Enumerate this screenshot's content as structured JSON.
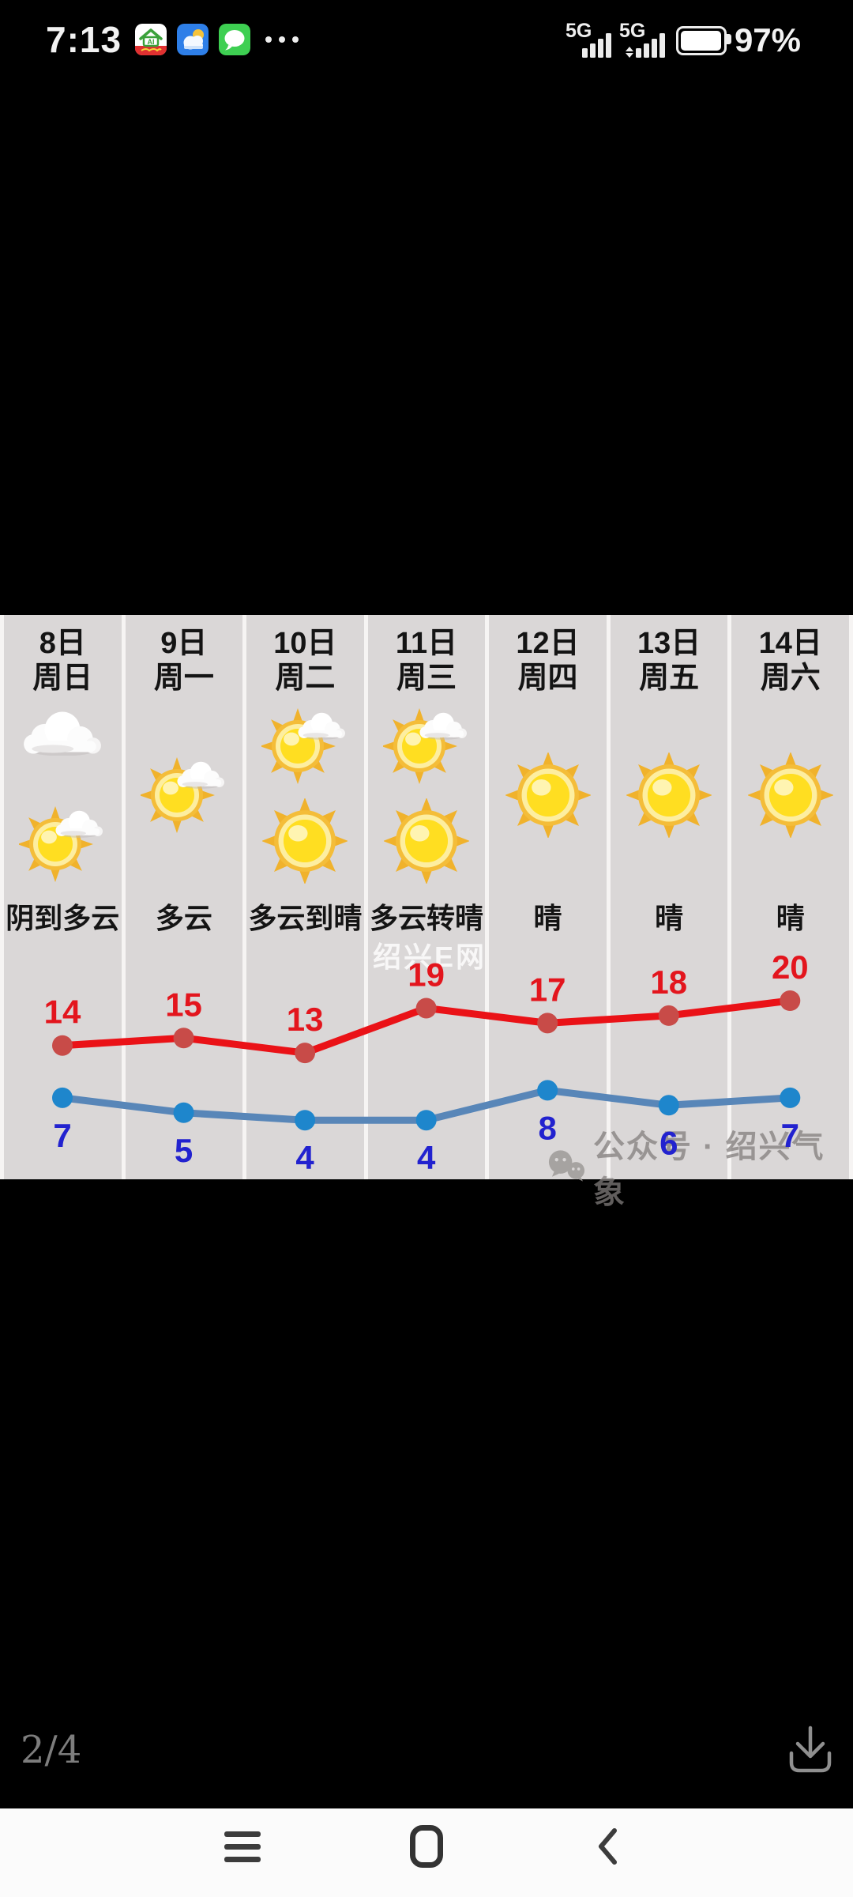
{
  "status_bar": {
    "time": "7:13",
    "notification_icons": [
      "home-app",
      "weather-app",
      "messages-app",
      "more"
    ],
    "signal1_label": "5G",
    "signal2_label": "5G",
    "battery_percent": "97%"
  },
  "forecast": {
    "watermark_center": "绍兴E网",
    "watermark_bottom": "公众号 · 绍兴气象",
    "days": [
      {
        "date": "8日",
        "weekday": "周日",
        "icons": [
          "cloud",
          "sun-cloud"
        ],
        "condition": "阴到多云",
        "high": 14,
        "low": 7
      },
      {
        "date": "9日",
        "weekday": "周一",
        "icons": [
          "sun-cloud"
        ],
        "condition": "多云",
        "high": 15,
        "low": 5
      },
      {
        "date": "10日",
        "weekday": "周二",
        "icons": [
          "sun-cloud",
          "sun"
        ],
        "condition": "多云到晴",
        "high": 13,
        "low": 4
      },
      {
        "date": "11日",
        "weekday": "周三",
        "icons": [
          "sun-cloud",
          "sun"
        ],
        "condition": "多云转晴",
        "high": 19,
        "low": 4
      },
      {
        "date": "12日",
        "weekday": "周四",
        "icons": [
          "sun"
        ],
        "condition": "晴",
        "high": 17,
        "low": 8
      },
      {
        "date": "13日",
        "weekday": "周五",
        "icons": [
          "sun"
        ],
        "condition": "晴",
        "high": 18,
        "low": 6
      },
      {
        "date": "14日",
        "weekday": "周六",
        "icons": [
          "sun"
        ],
        "condition": "晴",
        "high": 20,
        "low": 7
      }
    ]
  },
  "chart_data": {
    "type": "line",
    "categories": [
      "8日",
      "9日",
      "10日",
      "11日",
      "12日",
      "13日",
      "14日"
    ],
    "series": [
      {
        "name": "high",
        "values": [
          14,
          15,
          13,
          19,
          17,
          18,
          20
        ],
        "line_color": "#ea1217",
        "marker_color": "#c84b48",
        "label_color": "#e3151d",
        "label_position": "above"
      },
      {
        "name": "low",
        "values": [
          7,
          5,
          4,
          4,
          8,
          6,
          7
        ],
        "line_color": "#5886b8",
        "marker_color": "#1e86cc",
        "label_color": "#2222cf",
        "label_position": "below"
      }
    ],
    "axes_visible": false,
    "grid": "column-separators-only",
    "legend": "none"
  },
  "viewer": {
    "page_indicator": "2/4"
  },
  "colors": {
    "panel_bg": "#dad7d7",
    "separator": "#f6f4f3",
    "screen_bg": "#000000",
    "navbar_bg": "#fbfbfb"
  }
}
